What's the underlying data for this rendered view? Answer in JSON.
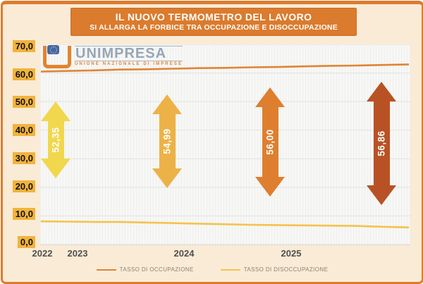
{
  "title_banner": {
    "title": "IL NUOVO TERMOMETRO DEL LAVORO",
    "subtitle": "SI ALLARGA LA FORBICE TRA OCCUPAZIONE E DISOCCUPAZIONE"
  },
  "logo": {
    "name": "UNIMPRESA",
    "tagline": "UNIONE NAZIONALE DI IMPRESE"
  },
  "colors": {
    "frame_orange": "#DC7C2E",
    "banner_bg": "#DB7B2D",
    "background_cream": "#FAEBD6",
    "ytick_chip": "#F2B33C",
    "gridline": "#E2E2E0",
    "occupazione_line": "#E08433",
    "disoccupazione_line": "#F5C24B"
  },
  "chart_data": {
    "type": "line",
    "title": "IL NUOVO TERMOMETRO DEL LAVORO",
    "subtitle": "SI ALLARGA LA FORBICE TRA OCCUPAZIONE E DISOCCUPAZIONE",
    "x_axis": {
      "labels": [
        "2022",
        "2023",
        "2024",
        "2025"
      ]
    },
    "y_axis": {
      "tick_labels": [
        "70,0",
        "60,0",
        "50,0",
        "40,0",
        "30,0",
        "20,0",
        "10,0",
        "0,0"
      ],
      "tick_values": [
        70,
        60,
        50,
        40,
        30,
        20,
        10,
        0
      ],
      "range": [
        0,
        70
      ],
      "grid": true
    },
    "series": [
      {
        "name": "TASSO DI OCCUPAZIONE",
        "color": "#E08433",
        "values": [
          60.5,
          60.7,
          60.9,
          61.2,
          61.3,
          61.5,
          61.7,
          61.8,
          62.0,
          62.1,
          62.3,
          62.5,
          62.6,
          62.8,
          63.0
        ]
      },
      {
        "name": "TASSO DI DISOCCUPAZIONE",
        "color": "#F5C24B",
        "values": [
          8.1,
          8.0,
          7.9,
          7.9,
          7.7,
          7.5,
          7.3,
          7.1,
          6.9,
          6.8,
          6.7,
          6.6,
          6.5,
          6.2,
          6.0
        ]
      }
    ],
    "legend": [
      {
        "label": "TASSO DI OCCUPAZIONE",
        "color": "#E08433"
      },
      {
        "label": "TASSO DI DISOCCUPAZIONE",
        "color": "#F5C24B"
      }
    ],
    "annotations": [
      {
        "label": "52,35",
        "value": 52.35,
        "color": "#F1D74D"
      },
      {
        "label": "54,99",
        "value": 54.99,
        "color": "#EDB247"
      },
      {
        "label": "56,00",
        "value": 56.0,
        "color": "#DE7F2F"
      },
      {
        "label": "56,86",
        "value": 56.86,
        "color": "#B85224"
      }
    ]
  }
}
